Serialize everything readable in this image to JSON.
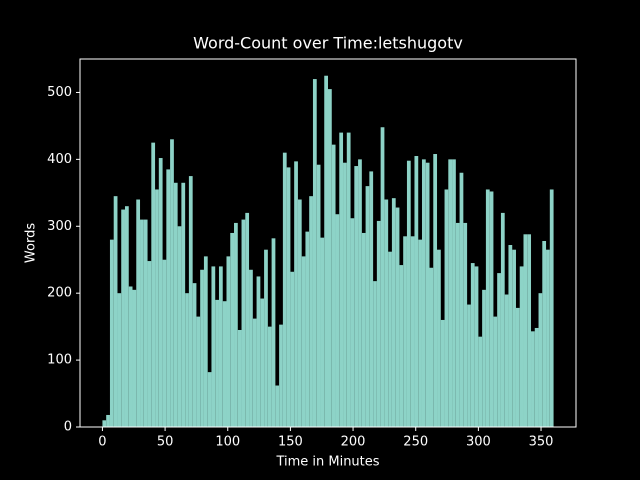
{
  "chart_data": {
    "type": "histogram",
    "title": "Word-Count over Time:letshugotv",
    "x_label": "Time in Minutes",
    "y_label": "Words",
    "color": "#8dd3c7",
    "bins": [
      0,
      3,
      6,
      9,
      12,
      15,
      18,
      21,
      24,
      27,
      30,
      33,
      36,
      39,
      42,
      45,
      48,
      51,
      54,
      57,
      60,
      63,
      66,
      69,
      72,
      75,
      78,
      81,
      84,
      87,
      90,
      93,
      96,
      99,
      102,
      105,
      108,
      111,
      114,
      117,
      120,
      123,
      126,
      129,
      132,
      135,
      138,
      141,
      144,
      147,
      150,
      153,
      156,
      159,
      162,
      165,
      168,
      171,
      174,
      177,
      180,
      183,
      186,
      189,
      192,
      195,
      198,
      201,
      204,
      207,
      210,
      213,
      216,
      219,
      222,
      225,
      228,
      231,
      234,
      237,
      240,
      243,
      246,
      249,
      252,
      255,
      258,
      261,
      264,
      267,
      270,
      273,
      276,
      279,
      282,
      285,
      288,
      291,
      294,
      297,
      300,
      303,
      306,
      309,
      312,
      315,
      318,
      321,
      324,
      327,
      330,
      333,
      336,
      339,
      342,
      345,
      348,
      351,
      354,
      357,
      360
    ],
    "values": [
      10,
      18,
      280,
      345,
      200,
      325,
      330,
      210,
      205,
      340,
      310,
      310,
      248,
      425,
      355,
      402,
      250,
      385,
      430,
      365,
      300,
      365,
      200,
      375,
      215,
      165,
      235,
      255,
      82,
      240,
      190,
      240,
      188,
      255,
      290,
      305,
      145,
      310,
      320,
      235,
      162,
      225,
      192,
      265,
      150,
      282,
      62,
      153,
      410,
      388,
      232,
      397,
      340,
      255,
      292,
      345,
      520,
      392,
      283,
      525,
      505,
      422,
      318,
      440,
      395,
      440,
      312,
      390,
      400,
      290,
      360,
      382,
      218,
      308,
      448,
      340,
      262,
      342,
      328,
      242,
      285,
      398,
      285,
      405,
      280,
      400,
      395,
      238,
      408,
      265,
      160,
      355,
      400,
      400,
      305,
      380,
      305,
      183,
      245,
      240,
      135,
      205,
      355,
      352,
      165,
      230,
      320,
      198,
      272,
      265,
      178,
      240,
      288,
      288,
      143,
      148,
      200,
      278,
      265,
      355
    ],
    "xlim": [
      -17.9,
      377.9
    ],
    "ylim": [
      0,
      550
    ],
    "xticks": [
      0,
      50,
      100,
      150,
      200,
      250,
      300,
      350
    ],
    "yticks": [
      0,
      100,
      200,
      300,
      400,
      500
    ]
  }
}
